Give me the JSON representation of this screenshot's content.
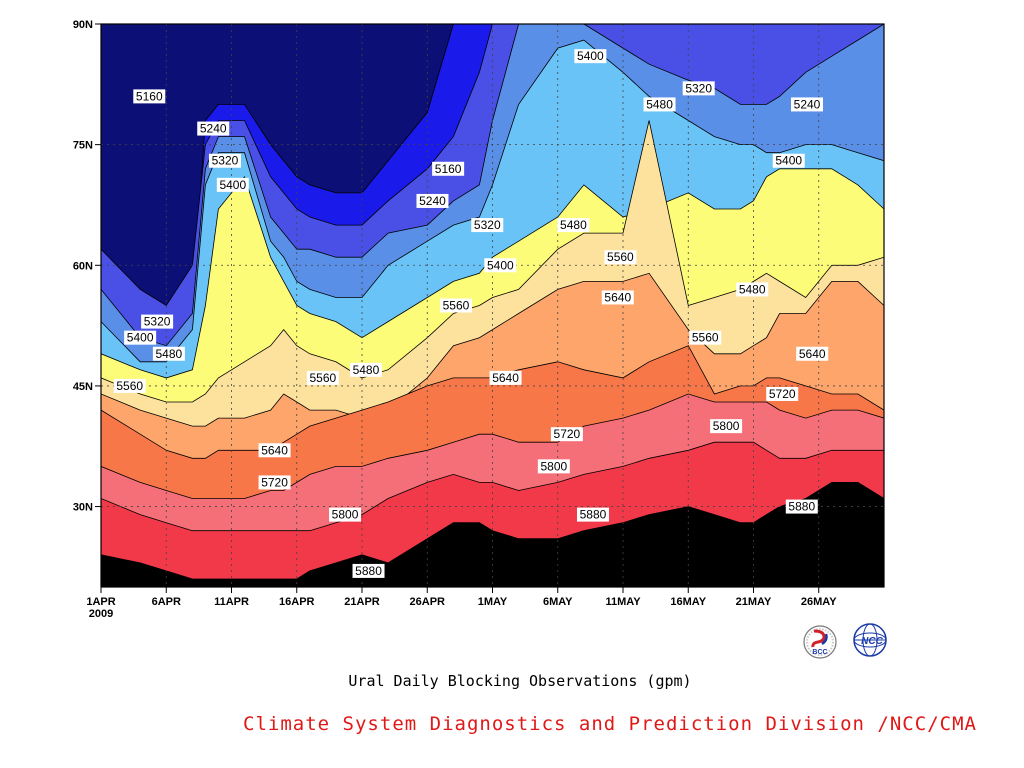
{
  "chart_data": {
    "type": "contour",
    "title": "",
    "subtitle": "Ural Daily Blocking Observations (gpm)",
    "xlabel": "",
    "ylabel": "",
    "x_ticks": [
      "1APR",
      "6APR",
      "11APR",
      "16APR",
      "21APR",
      "26APR",
      "1MAY",
      "6MAY",
      "11MAY",
      "16MAY",
      "21MAY",
      "26MAY"
    ],
    "x_year_label": "2009",
    "y_ticks": [
      "30N",
      "45N",
      "60N",
      "75N",
      "90N"
    ],
    "x_range_days": [
      0,
      60
    ],
    "y_range_lat": [
      20,
      90
    ],
    "grid": true,
    "contour_levels": [
      5160,
      5240,
      5320,
      5400,
      5480,
      5560,
      5640,
      5720,
      5800,
      5880
    ],
    "band_colors": [
      "#0c0f75",
      "#1a1aeb",
      "#4a50e6",
      "#5a8fe8",
      "#69c3f7",
      "#fcfc78",
      "#fde29e",
      "#fda56b",
      "#f87749",
      "#f56f78",
      "#f13949"
    ],
    "contour_labels": [
      {
        "text": "5160",
        "day": 3.7,
        "lat": 81
      },
      {
        "text": "5240",
        "day": 8.6,
        "lat": 77
      },
      {
        "text": "5320",
        "day": 9.5,
        "lat": 73
      },
      {
        "text": "5400",
        "day": 10.1,
        "lat": 70
      },
      {
        "text": "5160",
        "day": 26.6,
        "lat": 72
      },
      {
        "text": "5240",
        "day": 25.4,
        "lat": 68
      },
      {
        "text": "5320",
        "day": 29.6,
        "lat": 65
      },
      {
        "text": "5400",
        "day": 30.6,
        "lat": 60
      },
      {
        "text": "5480",
        "day": 36.2,
        "lat": 65
      },
      {
        "text": "5560",
        "day": 39.8,
        "lat": 61
      },
      {
        "text": "5400",
        "day": 37.5,
        "lat": 86
      },
      {
        "text": "5320",
        "day": 45.8,
        "lat": 82
      },
      {
        "text": "5240",
        "day": 54.1,
        "lat": 80
      },
      {
        "text": "5480",
        "day": 42.8,
        "lat": 80
      },
      {
        "text": "5400",
        "day": 52.7,
        "lat": 73
      },
      {
        "text": "5480",
        "day": 49.9,
        "lat": 57
      },
      {
        "text": "5320",
        "day": 4.3,
        "lat": 53
      },
      {
        "text": "5400",
        "day": 3.0,
        "lat": 51
      },
      {
        "text": "5480",
        "day": 5.2,
        "lat": 49
      },
      {
        "text": "5560",
        "day": 2.2,
        "lat": 45
      },
      {
        "text": "5560",
        "day": 17.0,
        "lat": 46
      },
      {
        "text": "5480",
        "day": 20.3,
        "lat": 47
      },
      {
        "text": "5560",
        "day": 27.2,
        "lat": 55
      },
      {
        "text": "5640",
        "day": 31.0,
        "lat": 46
      },
      {
        "text": "5640",
        "day": 39.6,
        "lat": 56
      },
      {
        "text": "5560",
        "day": 46.3,
        "lat": 51
      },
      {
        "text": "5640",
        "day": 54.5,
        "lat": 49
      },
      {
        "text": "5720",
        "day": 52.2,
        "lat": 44
      },
      {
        "text": "5640",
        "day": 13.3,
        "lat": 37
      },
      {
        "text": "5720",
        "day": 13.3,
        "lat": 33
      },
      {
        "text": "5720",
        "day": 35.7,
        "lat": 39
      },
      {
        "text": "5800",
        "day": 34.7,
        "lat": 35
      },
      {
        "text": "5800",
        "day": 47.9,
        "lat": 40
      },
      {
        "text": "5800",
        "day": 18.7,
        "lat": 29
      },
      {
        "text": "5880",
        "day": 37.7,
        "lat": 29
      },
      {
        "text": "5880",
        "day": 53.7,
        "lat": 30
      },
      {
        "text": "5880",
        "day": 20.5,
        "lat": 22
      }
    ]
  },
  "footer": "Climate System Diagnostics and Prediction Division /NCC/CMA",
  "logos": {
    "left_text": "BCC",
    "right_text": "NCC"
  }
}
